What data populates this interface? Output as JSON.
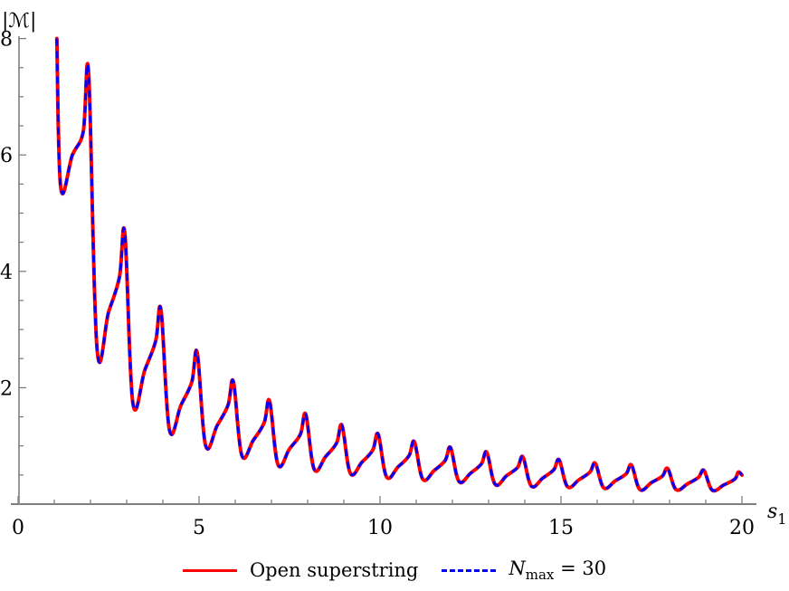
{
  "chart_data": {
    "type": "line",
    "title": "",
    "xlabel": "s_1",
    "ylabel": "|M|",
    "xlim": [
      0,
      20
    ],
    "ylim": [
      0,
      8
    ],
    "x_ticks": [
      0,
      5,
      10,
      15,
      20
    ],
    "x_tick_labels": [
      "0",
      "5",
      "10",
      "15",
      "20"
    ],
    "x_minor_step": 1,
    "y_ticks": [
      2,
      4,
      6,
      8
    ],
    "y_tick_labels": [
      "2",
      "4",
      "6",
      "8"
    ],
    "y_minor_step": 0.5,
    "grid": false,
    "legend_position": "bottom",
    "series": [
      {
        "name": "Open superstring",
        "color": "#ff0000",
        "style": "solid",
        "points": [
          [
            1.07,
            8.0
          ],
          [
            1.18,
            5.43
          ],
          [
            1.5,
            6.0
          ],
          [
            1.8,
            6.4
          ],
          [
            1.95,
            7.39
          ],
          [
            2.18,
            2.68
          ],
          [
            2.5,
            3.3
          ],
          [
            2.8,
            3.9
          ],
          [
            2.95,
            4.65
          ],
          [
            3.17,
            1.74
          ],
          [
            3.5,
            2.3
          ],
          [
            3.8,
            2.8
          ],
          [
            3.95,
            3.33
          ],
          [
            4.18,
            1.28
          ],
          [
            4.5,
            1.7
          ],
          [
            4.8,
            2.1
          ],
          [
            4.95,
            2.6
          ],
          [
            5.18,
            1.01
          ],
          [
            5.5,
            1.35
          ],
          [
            5.8,
            1.7
          ],
          [
            5.95,
            2.1
          ],
          [
            6.18,
            0.84
          ],
          [
            6.5,
            1.1
          ],
          [
            6.8,
            1.4
          ],
          [
            6.95,
            1.77
          ],
          [
            7.18,
            0.68
          ],
          [
            7.5,
            0.95
          ],
          [
            7.8,
            1.2
          ],
          [
            7.95,
            1.54
          ],
          [
            8.18,
            0.6
          ],
          [
            8.5,
            0.82
          ],
          [
            8.8,
            1.05
          ],
          [
            8.95,
            1.35
          ],
          [
            9.18,
            0.53
          ],
          [
            9.5,
            0.72
          ],
          [
            9.8,
            0.93
          ],
          [
            9.95,
            1.2
          ],
          [
            10.18,
            0.47
          ],
          [
            10.5,
            0.64
          ],
          [
            10.8,
            0.83
          ],
          [
            10.95,
            1.07
          ],
          [
            11.18,
            0.43
          ],
          [
            11.5,
            0.58
          ],
          [
            11.8,
            0.75
          ],
          [
            11.95,
            0.97
          ],
          [
            12.18,
            0.39
          ],
          [
            12.5,
            0.53
          ],
          [
            12.8,
            0.69
          ],
          [
            12.95,
            0.89
          ],
          [
            13.18,
            0.34
          ],
          [
            13.5,
            0.49
          ],
          [
            13.8,
            0.63
          ],
          [
            13.95,
            0.81
          ],
          [
            14.18,
            0.31
          ],
          [
            14.5,
            0.45
          ],
          [
            14.8,
            0.59
          ],
          [
            14.95,
            0.76
          ],
          [
            15.18,
            0.3
          ],
          [
            15.5,
            0.42
          ],
          [
            15.8,
            0.55
          ],
          [
            15.95,
            0.7
          ],
          [
            16.18,
            0.28
          ],
          [
            16.5,
            0.4
          ],
          [
            16.8,
            0.52
          ],
          [
            16.95,
            0.67
          ],
          [
            17.18,
            0.25
          ],
          [
            17.5,
            0.37
          ],
          [
            17.8,
            0.48
          ],
          [
            17.95,
            0.61
          ],
          [
            18.18,
            0.25
          ],
          [
            18.5,
            0.35
          ],
          [
            18.8,
            0.46
          ],
          [
            18.95,
            0.58
          ],
          [
            19.18,
            0.24
          ],
          [
            19.5,
            0.33
          ],
          [
            19.8,
            0.43
          ],
          [
            19.9,
            0.55
          ],
          [
            20.0,
            0.5
          ]
        ]
      },
      {
        "name": "N_max = 30",
        "color": "#0000ff",
        "style": "dashed",
        "same_as": "Open superstring",
        "note_visual": "overlaps the red curve almost exactly; slightly lower peaks at large s_1"
      }
    ]
  },
  "axes": {
    "y_title": "|ℳ|",
    "x_title_main": "s",
    "x_title_sub": "1"
  },
  "legend": {
    "items": [
      {
        "label": "Open superstring",
        "color": "#ff0000",
        "style": "solid"
      },
      {
        "label_main": "N",
        "label_sub": "max",
        "label_rest": " = 30",
        "color": "#0000ff",
        "style": "dashed"
      }
    ]
  }
}
